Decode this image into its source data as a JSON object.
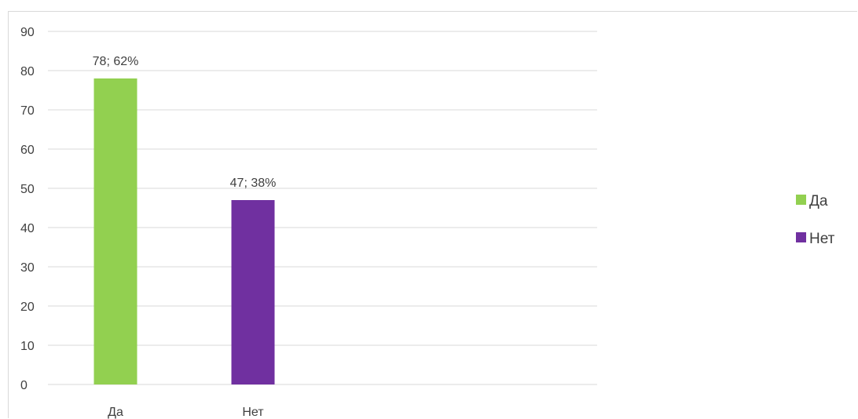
{
  "chart_data": {
    "type": "bar",
    "categories": [
      "Да",
      "Нет"
    ],
    "values": [
      78,
      47
    ],
    "data_labels": [
      "78; 62%",
      "47; 38%"
    ],
    "colors": [
      "#92d050",
      "#7030a0"
    ],
    "title": "",
    "xlabel": "",
    "ylabel": "",
    "ylim": [
      0,
      90
    ],
    "yticks": [
      0,
      10,
      20,
      30,
      40,
      50,
      60,
      70,
      80,
      90
    ],
    "grid": true,
    "legend": {
      "placement": "right",
      "entries": [
        {
          "label": "Да",
          "color": "#92d050"
        },
        {
          "label": "Нет",
          "color": "#7030a0"
        }
      ]
    }
  }
}
